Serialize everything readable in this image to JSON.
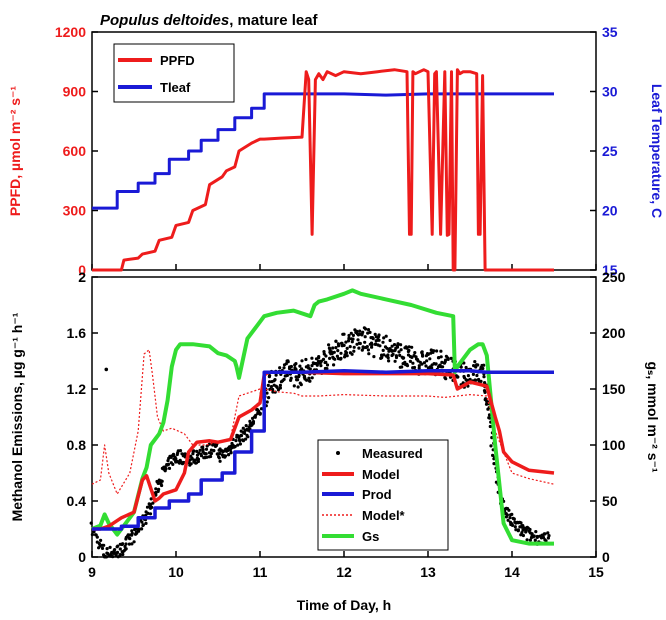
{
  "chart_data": [
    {
      "type": "line",
      "title_italic": "Populus deltoides",
      "title_rest": ", mature leaf",
      "xlim": [
        9,
        15
      ],
      "x_ticks": [
        "9",
        "10",
        "11",
        "12",
        "13",
        "14",
        "15"
      ],
      "ylabel": "PPFD, µmol m⁻² s⁻¹",
      "ylim": [
        0,
        1200
      ],
      "y_ticks": [
        "0",
        "300",
        "600",
        "900",
        "1200"
      ],
      "y2label": "Leaf Temperature, C",
      "y2lim": [
        15,
        35
      ],
      "y2_ticks": [
        "15",
        "20",
        "25",
        "30",
        "35"
      ],
      "legend_position": "top-left",
      "colors": {
        "ppfd": "#ee1c1c",
        "tleaf": "#1a1ad6"
      },
      "series": [
        {
          "name": "PPFD",
          "axis": "left",
          "x": [
            9,
            9.35,
            9.38,
            9.55,
            9.6,
            9.75,
            9.8,
            9.95,
            10,
            10.15,
            10.2,
            10.35,
            10.4,
            10.55,
            10.6,
            10.7,
            10.75,
            10.9,
            11,
            11.05,
            11.25,
            11.5,
            11.55,
            11.58,
            11.62,
            11.66,
            11.7,
            11.75,
            11.8,
            11.9,
            12,
            12.2,
            12.4,
            12.6,
            12.75,
            12.78,
            12.8,
            12.82,
            12.85,
            12.95,
            13,
            13.05,
            13.08,
            13.1,
            13.15,
            13.2,
            13.23,
            13.25,
            13.28,
            13.3,
            13.32,
            13.35,
            13.38,
            13.42,
            13.5,
            13.58,
            13.6,
            13.62,
            13.65,
            13.68,
            13.7,
            13.72,
            14,
            14.5
          ],
          "y": [
            0,
            0,
            50,
            60,
            80,
            95,
            150,
            165,
            225,
            240,
            300,
            330,
            430,
            470,
            500,
            520,
            600,
            640,
            660,
            660,
            665,
            670,
            1000,
            960,
            180,
            960,
            990,
            960,
            1000,
            980,
            1000,
            990,
            1000,
            1010,
            1000,
            180,
            180,
            1000,
            990,
            1010,
            1000,
            180,
            990,
            1000,
            180,
            1000,
            175,
            180,
            1000,
            0,
            0,
            1010,
            990,
            1000,
            1000,
            990,
            180,
            180,
            980,
            0,
            0,
            0,
            0,
            0
          ]
        },
        {
          "name": "Tleaf",
          "axis": "right",
          "x": [
            9,
            9.3,
            9.3,
            9.55,
            9.55,
            9.75,
            9.75,
            9.92,
            9.92,
            10.15,
            10.15,
            10.3,
            10.3,
            10.5,
            10.5,
            10.7,
            10.7,
            10.9,
            10.9,
            11.05,
            11.05,
            11.5,
            12,
            12.5,
            13,
            13.3,
            13.6,
            14,
            14.5
          ],
          "y": [
            20.2,
            20.2,
            21.6,
            21.6,
            22.3,
            22.3,
            23.1,
            23.1,
            24.3,
            24.3,
            25.0,
            25.0,
            25.9,
            25.9,
            26.8,
            26.8,
            27.8,
            27.8,
            28.6,
            28.6,
            29.8,
            29.8,
            29.8,
            29.7,
            29.8,
            29.8,
            29.8,
            29.8,
            29.8
          ]
        }
      ]
    },
    {
      "type": "scatter",
      "xlabel": "Time of Day, h",
      "xlim": [
        9,
        15
      ],
      "x_ticks": [
        "9",
        "10",
        "11",
        "12",
        "13",
        "14",
        "15"
      ],
      "ylabel": "Methanol Emissions, µg g⁻¹ h⁻¹",
      "ylim": [
        0,
        2
      ],
      "y_ticks": [
        "0",
        "0.4",
        "0.8",
        "1.2",
        "1.6",
        "2"
      ],
      "y2label": "gₛ, mmol m⁻² s⁻¹",
      "y2lim": [
        0,
        250
      ],
      "y2_ticks": [
        "0",
        "50",
        "100",
        "150",
        "200",
        "250"
      ],
      "legend_position": "bottom-center",
      "colors": {
        "measured": "#000000",
        "model": "#ee1c1c",
        "prod": "#1a1ad6",
        "model_star": "#ee1c1c",
        "gs": "#33dd33"
      },
      "series": [
        {
          "name": "Measured",
          "style": "points",
          "x": [
            9,
            9.15,
            9.25,
            9.35,
            9.45,
            9.55,
            9.65,
            9.75,
            9.85,
            9.95,
            10.05,
            10.15,
            10.25,
            10.35,
            10.45,
            10.55,
            10.65,
            10.75,
            10.85,
            10.95,
            11.05,
            11.15,
            11.25,
            11.35,
            11.45,
            11.55,
            11.65,
            11.75,
            11.85,
            11.95,
            12.05,
            12.15,
            12.25,
            12.35,
            12.45,
            12.55,
            12.65,
            12.75,
            12.85,
            12.95,
            13.05,
            13.15,
            13.25,
            13.35,
            13.45,
            13.55,
            13.65,
            13.72,
            13.8,
            13.9,
            14,
            14.1,
            14.2,
            14.3,
            14.45
          ],
          "y": [
            0.2,
            0.02,
            0.03,
            0.05,
            0.12,
            0.2,
            0.3,
            0.45,
            0.6,
            0.7,
            0.72,
            0.7,
            0.72,
            0.75,
            0.78,
            0.72,
            0.78,
            0.85,
            0.9,
            1.0,
            1.15,
            1.25,
            1.3,
            1.32,
            1.3,
            1.33,
            1.35,
            1.4,
            1.45,
            1.5,
            1.52,
            1.55,
            1.55,
            1.52,
            1.5,
            1.48,
            1.45,
            1.42,
            1.4,
            1.38,
            1.4,
            1.38,
            1.35,
            1.3,
            1.3,
            1.32,
            1.3,
            1.1,
            0.6,
            0.35,
            0.25,
            0.2,
            0.16,
            0.14,
            0.12
          ]
        },
        {
          "name": "Model",
          "axis": "left",
          "x": [
            9,
            9.1,
            9.2,
            9.35,
            9.5,
            9.6,
            9.65,
            9.75,
            9.8,
            9.85,
            10,
            10.1,
            10.15,
            10.25,
            10.4,
            10.5,
            10.65,
            10.75,
            10.9,
            11,
            11.05,
            11.1,
            11.5,
            12,
            12.5,
            13,
            13.3,
            13.35,
            13.5,
            13.7,
            13.8,
            13.85,
            13.9,
            14,
            14.2,
            14.5
          ],
          "y": [
            0.2,
            0.2,
            0.22,
            0.28,
            0.32,
            0.55,
            0.58,
            0.4,
            0.42,
            0.45,
            0.48,
            0.6,
            0.75,
            0.82,
            0.83,
            0.82,
            0.84,
            1.0,
            1.05,
            1.1,
            1.3,
            1.32,
            1.32,
            1.31,
            1.31,
            1.31,
            1.3,
            1.2,
            1.25,
            1.22,
            1.0,
            0.9,
            0.75,
            0.68,
            0.62,
            0.6
          ]
        },
        {
          "name": "Prod",
          "axis": "left",
          "x": [
            9,
            9.35,
            9.35,
            9.55,
            9.55,
            9.75,
            9.75,
            9.92,
            9.92,
            10.15,
            10.15,
            10.3,
            10.3,
            10.55,
            10.55,
            10.7,
            10.7,
            10.9,
            10.9,
            11.05,
            11.05,
            11.5,
            12,
            12.5,
            13,
            13.5,
            13.7,
            14,
            14.5
          ],
          "y": [
            0.2,
            0.2,
            0.22,
            0.22,
            0.28,
            0.28,
            0.35,
            0.35,
            0.4,
            0.4,
            0.45,
            0.45,
            0.55,
            0.55,
            0.6,
            0.6,
            0.75,
            0.75,
            0.9,
            0.9,
            1.32,
            1.32,
            1.33,
            1.32,
            1.33,
            1.33,
            1.32,
            1.32,
            1.32
          ]
        },
        {
          "name": "Model*",
          "axis": "left",
          "style": "dotted",
          "x": [
            9,
            9.1,
            9.15,
            9.2,
            9.3,
            9.45,
            9.55,
            9.62,
            9.68,
            9.72,
            9.78,
            9.85,
            9.95,
            10.1,
            10.2,
            10.35,
            10.5,
            10.65,
            10.75,
            10.9,
            11,
            11.05,
            11.2,
            11.4,
            11.5,
            11.7,
            12,
            12.5,
            13,
            13.2,
            13.35,
            13.5,
            13.7,
            13.8,
            13.9,
            14,
            14.2,
            14.5
          ],
          "y": [
            0.52,
            0.55,
            0.8,
            0.6,
            0.45,
            0.6,
            0.9,
            1.45,
            1.48,
            1.3,
            1.0,
            0.9,
            0.92,
            0.88,
            0.8,
            0.8,
            0.82,
            0.85,
            1.15,
            1.18,
            1.2,
            1.2,
            1.18,
            1.17,
            1.15,
            1.15,
            1.16,
            1.15,
            1.15,
            1.14,
            1.15,
            1.16,
            1.15,
            0.9,
            0.75,
            0.6,
            0.56,
            0.52
          ]
        },
        {
          "name": "Gs",
          "axis": "right",
          "x": [
            9,
            9.1,
            9.15,
            9.2,
            9.3,
            9.4,
            9.5,
            9.55,
            9.6,
            9.65,
            9.7,
            9.8,
            9.85,
            9.9,
            9.95,
            10.0,
            10.05,
            10.1,
            10.2,
            10.4,
            10.5,
            10.6,
            10.7,
            10.72,
            10.75,
            10.85,
            11.0,
            11.05,
            11.2,
            11.4,
            11.6,
            11.65,
            11.7,
            11.8,
            12.0,
            12.1,
            12.2,
            12.5,
            12.8,
            13.1,
            13.3,
            13.32,
            13.35,
            13.5,
            13.6,
            13.65,
            13.7,
            13.8,
            13.9,
            14.0,
            14.2,
            14.5
          ],
          "y": [
            25,
            28,
            38,
            30,
            20,
            30,
            40,
            55,
            70,
            80,
            100,
            110,
            120,
            140,
            170,
            185,
            190,
            190,
            190,
            188,
            182,
            180,
            175,
            170,
            160,
            195,
            210,
            215,
            218,
            220,
            215,
            225,
            228,
            230,
            235,
            238,
            235,
            230,
            225,
            218,
            215,
            165,
            170,
            185,
            190,
            190,
            180,
            100,
            30,
            15,
            12,
            12
          ]
        }
      ]
    }
  ]
}
